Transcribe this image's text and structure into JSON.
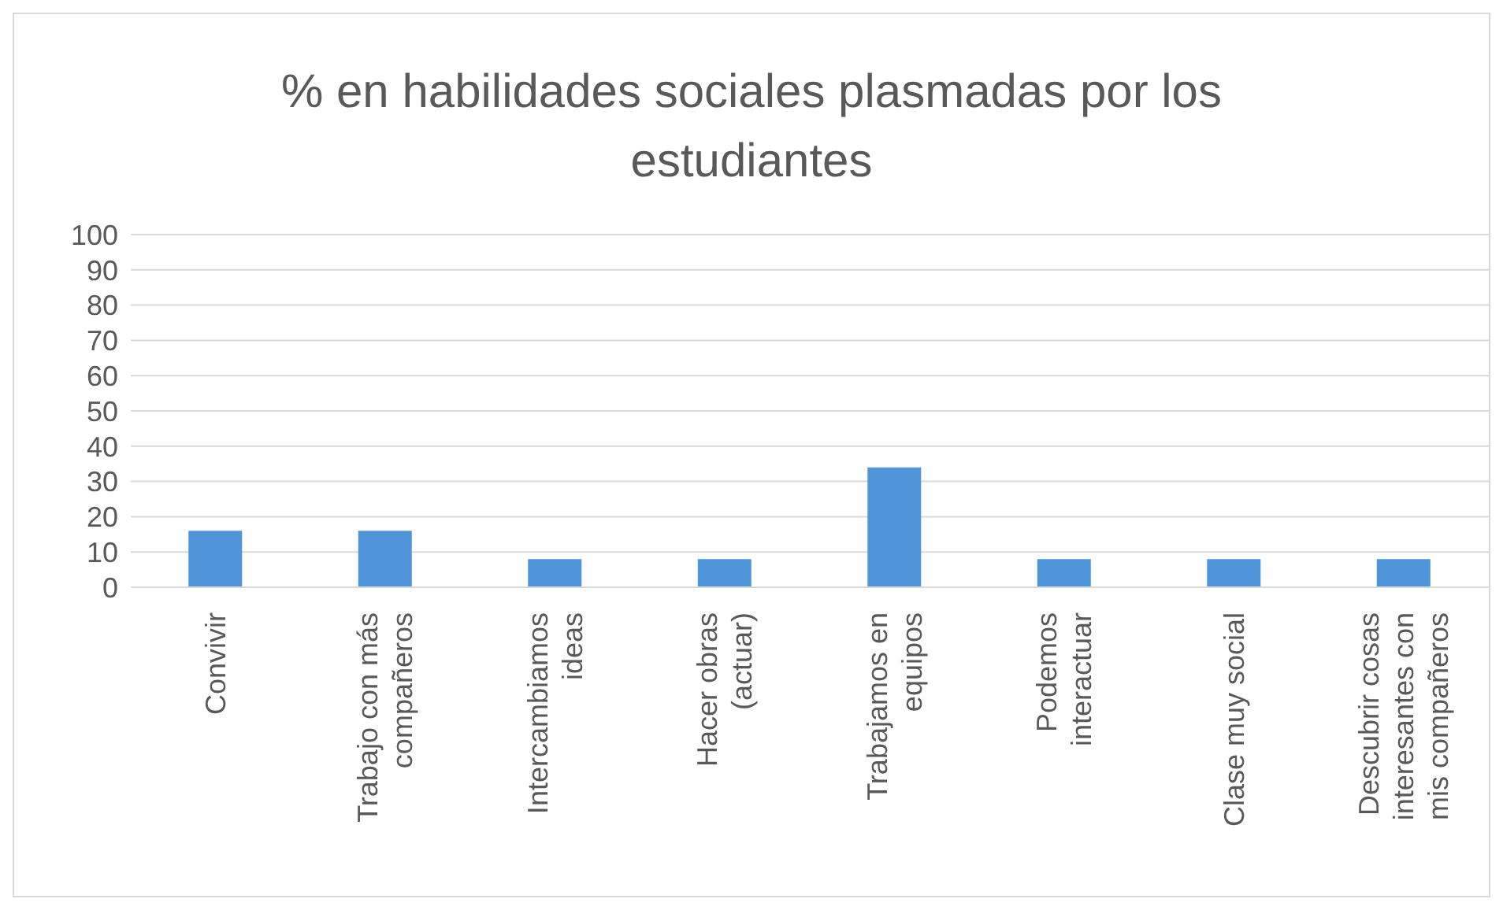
{
  "chart_data": {
    "type": "bar",
    "title": "% en habilidades sociales plasmadas por los estudiantes",
    "categories": [
      "Convivir",
      "Trabajo con más compañeros",
      "Intercambiamos ideas",
      "Hacer obras (actuar)",
      "Trabajamos en equipos",
      "Podemos interactuar",
      "Clase muy social",
      "Descubrir cosas interesantes con mis compañeros"
    ],
    "values": [
      16,
      16,
      8,
      8,
      34,
      8,
      8,
      8
    ],
    "color": "#4e95d9",
    "ylim": [
      0,
      100
    ],
    "yticks": [
      0,
      10,
      20,
      30,
      40,
      50,
      60,
      70,
      80,
      90,
      100
    ],
    "grid": "y"
  }
}
